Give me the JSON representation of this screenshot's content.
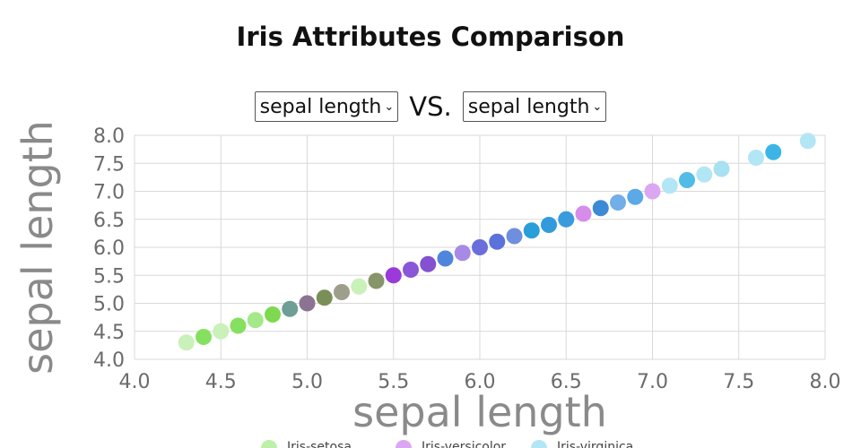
{
  "title": "Iris Attributes Comparison",
  "controls": {
    "x_select": {
      "value": "sepal length"
    },
    "vs_label": "VS.",
    "y_select": {
      "value": "sepal length"
    }
  },
  "colors": {
    "gridline": "#d9d9d9",
    "setosa": "#bdf0a8",
    "versicolor": "#dba7f2",
    "virginica": "#b3e6f5"
  },
  "chart_data": {
    "type": "scatter",
    "title": "Iris Attributes Comparison",
    "xlabel": "sepal length",
    "ylabel": "sepal length",
    "xlim": [
      4.0,
      8.0
    ],
    "ylim": [
      4.0,
      8.0
    ],
    "xticks": [
      "4.0",
      "4.5",
      "5.0",
      "5.5",
      "6.0",
      "6.5",
      "7.0",
      "7.5",
      "8.0"
    ],
    "yticks": [
      "4.0",
      "4.5",
      "5.0",
      "5.5",
      "6.0",
      "6.5",
      "7.0",
      "7.5",
      "8.0"
    ],
    "grid": true,
    "legend_position": "bottom",
    "series": [
      {
        "name": "Iris-setosa",
        "color": "#bdf0a8"
      },
      {
        "name": "Iris-versicolor",
        "color": "#dba7f2"
      },
      {
        "name": "Iris-virginica",
        "color": "#b3e6f5"
      }
    ],
    "points": [
      {
        "x": 4.3,
        "y": 4.3,
        "color": "#c9f1b9"
      },
      {
        "x": 4.4,
        "y": 4.4,
        "color": "#86e060"
      },
      {
        "x": 4.5,
        "y": 4.5,
        "color": "#c9f1b9"
      },
      {
        "x": 4.6,
        "y": 4.6,
        "color": "#86e060"
      },
      {
        "x": 4.7,
        "y": 4.7,
        "color": "#a4e88a"
      },
      {
        "x": 4.8,
        "y": 4.8,
        "color": "#7ed94f"
      },
      {
        "x": 4.9,
        "y": 4.9,
        "color": "#6e9e95"
      },
      {
        "x": 5.0,
        "y": 5.0,
        "color": "#8c7391"
      },
      {
        "x": 5.1,
        "y": 5.1,
        "color": "#7a8f58"
      },
      {
        "x": 5.2,
        "y": 5.2,
        "color": "#9e9e8c"
      },
      {
        "x": 5.3,
        "y": 5.3,
        "color": "#c9f1b9"
      },
      {
        "x": 5.4,
        "y": 5.4,
        "color": "#88946a"
      },
      {
        "x": 5.5,
        "y": 5.5,
        "color": "#9b3ad9"
      },
      {
        "x": 5.6,
        "y": 5.6,
        "color": "#8a55d9"
      },
      {
        "x": 5.7,
        "y": 5.7,
        "color": "#8451d1"
      },
      {
        "x": 5.8,
        "y": 5.8,
        "color": "#4f86dc"
      },
      {
        "x": 5.9,
        "y": 5.9,
        "color": "#a78ae6"
      },
      {
        "x": 6.0,
        "y": 6.0,
        "color": "#6a6edc"
      },
      {
        "x": 6.1,
        "y": 6.1,
        "color": "#5b72da"
      },
      {
        "x": 6.2,
        "y": 6.2,
        "color": "#6f8fde"
      },
      {
        "x": 6.3,
        "y": 6.3,
        "color": "#2a9ed9"
      },
      {
        "x": 6.4,
        "y": 6.4,
        "color": "#339bdc"
      },
      {
        "x": 6.5,
        "y": 6.5,
        "color": "#3a9bdc"
      },
      {
        "x": 6.6,
        "y": 6.6,
        "color": "#d58de9"
      },
      {
        "x": 6.7,
        "y": 6.7,
        "color": "#3b8ad6"
      },
      {
        "x": 6.8,
        "y": 6.8,
        "color": "#72aee8"
      },
      {
        "x": 6.9,
        "y": 6.9,
        "color": "#5ba9e6"
      },
      {
        "x": 7.0,
        "y": 7.0,
        "color": "#dba7f2"
      },
      {
        "x": 7.1,
        "y": 7.1,
        "color": "#b3e6f5"
      },
      {
        "x": 7.2,
        "y": 7.2,
        "color": "#52bce6"
      },
      {
        "x": 7.3,
        "y": 7.3,
        "color": "#b3e6f5"
      },
      {
        "x": 7.4,
        "y": 7.4,
        "color": "#a7e1f2"
      },
      {
        "x": 7.6,
        "y": 7.6,
        "color": "#b3e6f5"
      },
      {
        "x": 7.7,
        "y": 7.7,
        "color": "#3cb5e6"
      },
      {
        "x": 7.9,
        "y": 7.9,
        "color": "#b3e6f5"
      }
    ]
  }
}
